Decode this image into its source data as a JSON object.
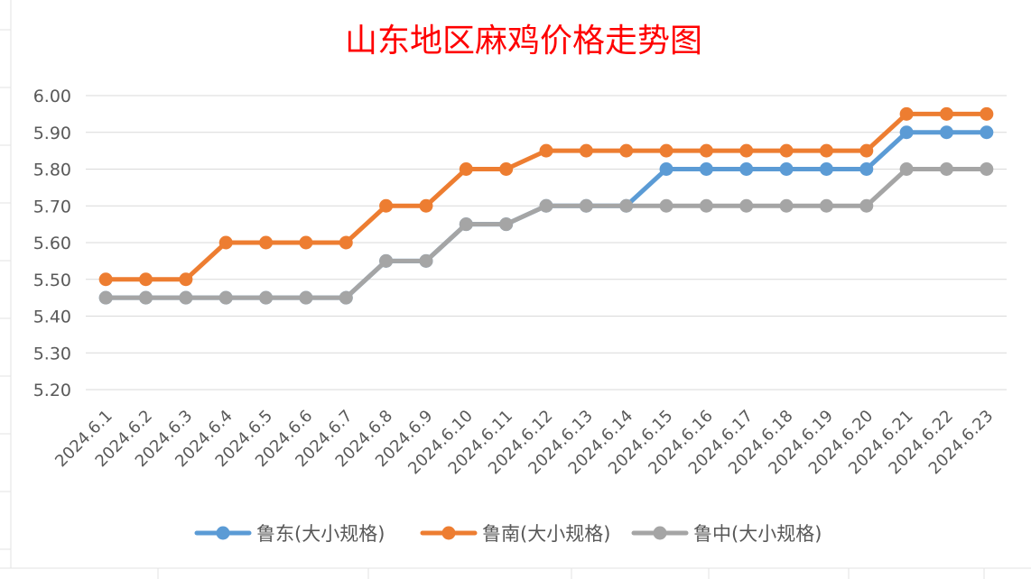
{
  "chart_data": {
    "type": "line",
    "title": "山东地区麻鸡价格走势图",
    "xlabel": "",
    "ylabel": "",
    "categories": [
      "2024.6.1",
      "2024.6.2",
      "2024.6.3",
      "2024.6.4",
      "2024.6.5",
      "2024.6.6",
      "2024.6.7",
      "2024.6.8",
      "2024.6.9",
      "2024.6.10",
      "2024.6.11",
      "2024.6.12",
      "2024.6.13",
      "2024.6.14",
      "2024.6.15",
      "2024.6.16",
      "2024.6.17",
      "2024.6.18",
      "2024.6.19",
      "2024.6.20",
      "2024.6.21",
      "2024.6.22",
      "2024.6.23"
    ],
    "ylim": [
      5.2,
      6.0
    ],
    "yticks": [
      "5.20",
      "5.30",
      "5.40",
      "5.50",
      "5.60",
      "5.70",
      "5.80",
      "5.90",
      "6.00"
    ],
    "grid": true,
    "legend_position": "bottom",
    "series": [
      {
        "name": "鲁东(大小规格)",
        "color": "#5b9bd5",
        "values": [
          5.45,
          5.45,
          5.45,
          5.45,
          5.45,
          5.45,
          5.45,
          5.55,
          5.55,
          5.65,
          5.65,
          5.7,
          5.7,
          5.7,
          5.8,
          5.8,
          5.8,
          5.8,
          5.8,
          5.8,
          5.9,
          5.9,
          5.9
        ]
      },
      {
        "name": "鲁南(大小规格)",
        "color": "#ed7d31",
        "values": [
          5.5,
          5.5,
          5.5,
          5.6,
          5.6,
          5.6,
          5.6,
          5.7,
          5.7,
          5.8,
          5.8,
          5.85,
          5.85,
          5.85,
          5.85,
          5.85,
          5.85,
          5.85,
          5.85,
          5.85,
          5.95,
          5.95,
          5.95
        ]
      },
      {
        "name": "鲁中(大小规格)",
        "color": "#a5a5a5",
        "values": [
          5.45,
          5.45,
          5.45,
          5.45,
          5.45,
          5.45,
          5.45,
          5.55,
          5.55,
          5.65,
          5.65,
          5.7,
          5.7,
          5.7,
          5.7,
          5.7,
          5.7,
          5.7,
          5.7,
          5.7,
          5.8,
          5.8,
          5.8
        ]
      }
    ]
  }
}
